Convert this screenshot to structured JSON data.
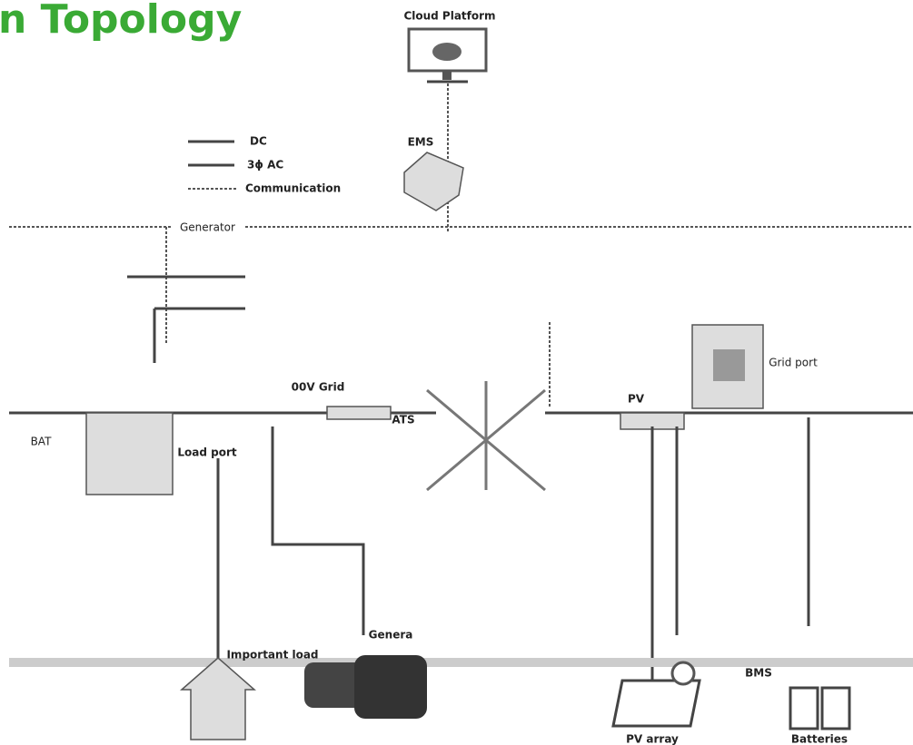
{
  "header": {
    "title": "n Topology"
  },
  "legend": [
    {
      "label": "DC"
    },
    {
      "label": "3ϕ AC"
    },
    {
      "label": "Communication"
    }
  ],
  "nodes": [
    {
      "label": "Cloud Platform"
    },
    {
      "label": "EMS"
    },
    {
      "label": "Generator"
    },
    {
      "label": "00V Grid"
    },
    {
      "label": "ATS"
    },
    {
      "label": "PV"
    },
    {
      "label": "Grid port"
    },
    {
      "label": "BAT"
    },
    {
      "label": "Load port"
    },
    {
      "label": "Important load"
    },
    {
      "label": "Genera"
    },
    {
      "label": "PV array"
    },
    {
      "label": "BMS"
    },
    {
      "label": "Batteries"
    }
  ]
}
